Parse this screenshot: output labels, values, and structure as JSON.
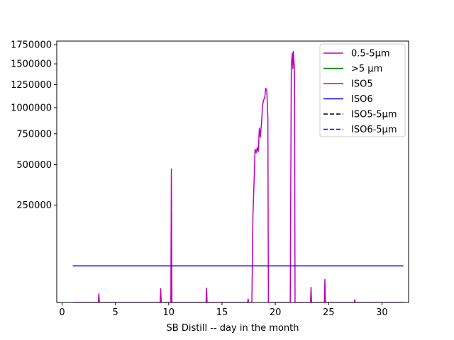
{
  "chart_data": {
    "type": "line",
    "title": "",
    "xlabel": "SB Distill -- day in the month",
    "ylabel": "",
    "xlim": [
      -0.5,
      32.5
    ],
    "x_ticks": [
      0,
      5,
      10,
      15,
      20,
      25,
      30
    ],
    "x_tick_labels": [
      "0",
      "5",
      "10",
      "15",
      "20",
      "25",
      "30"
    ],
    "y_scale": "sqrt",
    "ylim": [
      0,
      1800000
    ],
    "y_ticks": [
      250000,
      500000,
      750000,
      1000000,
      1250000,
      1500000,
      1750000
    ],
    "y_tick_labels": [
      "250000",
      "500000",
      "750000",
      "1000000",
      "1250000",
      "1500000",
      "1750000"
    ],
    "grid": false,
    "legend_position": "top-right",
    "series": [
      {
        "name": "0.5-5µm",
        "color": "#bf00bf",
        "dash": "solid",
        "points": [
          [
            1,
            0
          ],
          [
            3.4,
            0
          ],
          [
            3.45,
            2000
          ],
          [
            3.5,
            0
          ],
          [
            9.2,
            0
          ],
          [
            9.25,
            5000
          ],
          [
            9.3,
            0
          ],
          [
            10.2,
            0
          ],
          [
            10.25,
            470000
          ],
          [
            10.3,
            0
          ],
          [
            13.5,
            0
          ],
          [
            13.55,
            5500
          ],
          [
            13.6,
            0
          ],
          [
            17.4,
            0
          ],
          [
            17.45,
            300
          ],
          [
            17.5,
            0
          ],
          [
            17.8,
            0
          ],
          [
            17.9,
            200000
          ],
          [
            18.0,
            370000
          ],
          [
            18.1,
            620000
          ],
          [
            18.2,
            590000
          ],
          [
            18.3,
            630000
          ],
          [
            18.4,
            600000
          ],
          [
            18.5,
            800000
          ],
          [
            18.6,
            720000
          ],
          [
            18.7,
            840000
          ],
          [
            18.8,
            1020000
          ],
          [
            18.9,
            1080000
          ],
          [
            19.0,
            1100000
          ],
          [
            19.1,
            1210000
          ],
          [
            19.2,
            1180000
          ],
          [
            19.3,
            900000
          ],
          [
            19.35,
            0
          ],
          [
            21.4,
            0
          ],
          [
            21.5,
            1500000
          ],
          [
            21.6,
            1640000
          ],
          [
            21.65,
            1440000
          ],
          [
            21.7,
            1660000
          ],
          [
            21.8,
            1400000
          ],
          [
            21.85,
            0
          ],
          [
            23.3,
            0
          ],
          [
            23.35,
            6000
          ],
          [
            23.4,
            0
          ],
          [
            24.6,
            0
          ],
          [
            24.65,
            14000
          ],
          [
            24.7,
            0
          ],
          [
            27.4,
            0
          ],
          [
            27.45,
            200
          ],
          [
            27.5,
            0
          ],
          [
            32,
            0
          ]
        ]
      },
      {
        "name": ">5 µm",
        "color": "#008000",
        "dash": "solid",
        "points": []
      },
      {
        "name": "ISO5",
        "color": "#ff0000",
        "dash": "solid",
        "points": []
      },
      {
        "name": "ISO6",
        "color": "#0000ff",
        "dash": "solid",
        "points": [
          [
            1,
            35200
          ],
          [
            32,
            35200
          ]
        ]
      },
      {
        "name": "ISO5-5µm",
        "color": "#000000",
        "dash": "dashed",
        "points": []
      },
      {
        "name": "ISO6-5µm",
        "color": "#0000ff",
        "dash": "dashed",
        "points": []
      }
    ]
  }
}
